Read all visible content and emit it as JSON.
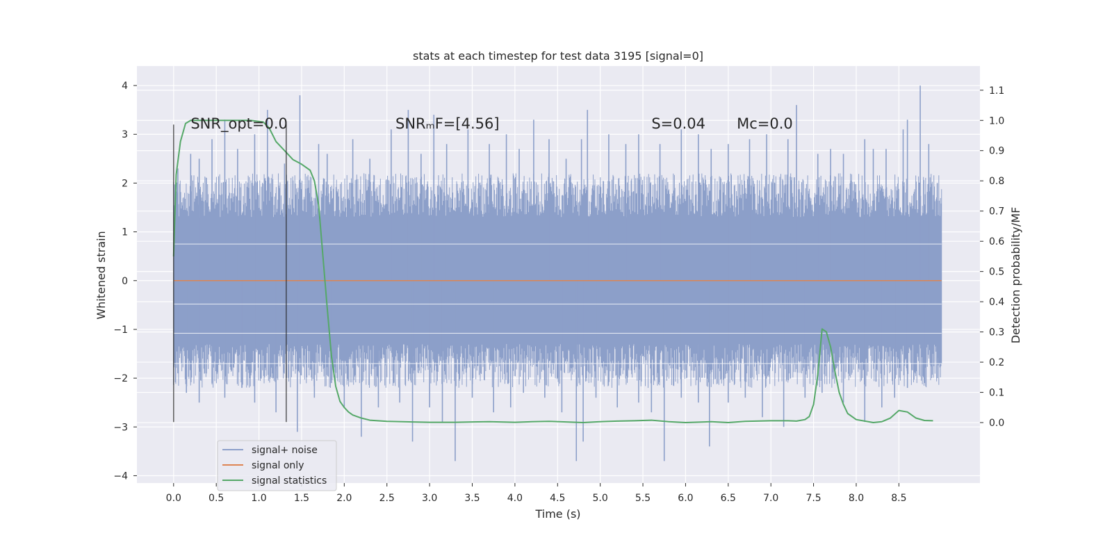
{
  "chart_data": {
    "type": "line",
    "title": "stats at each timestep for test data 3195 [signal=0]",
    "xlabel": "Time (s)",
    "ylabel": "Whitened strain",
    "y2label": "Detection probability/MF",
    "xlim": [
      -0.43,
      9.45
    ],
    "ylim": [
      -4.15,
      4.4
    ],
    "y2lim": [
      -0.2,
      1.18
    ],
    "xticks": [
      0.0,
      0.5,
      1.0,
      1.5,
      2.0,
      2.5,
      3.0,
      3.5,
      4.0,
      4.5,
      5.0,
      5.5,
      6.0,
      6.5,
      7.0,
      7.5,
      8.0,
      8.5
    ],
    "xtick_labels": [
      "0.0",
      "0.5",
      "1.0",
      "1.5",
      "2.0",
      "2.5",
      "3.0",
      "3.5",
      "4.0",
      "4.5",
      "5.0",
      "5.5",
      "6.0",
      "6.5",
      "7.0",
      "7.5",
      "8.0",
      "8.5"
    ],
    "yticks": [
      4,
      3,
      2,
      1,
      0,
      -1,
      -2,
      -3,
      -4
    ],
    "ytick_labels": [
      "4",
      "3",
      "2",
      "1",
      "0",
      "−1",
      "−2",
      "−3",
      "−4"
    ],
    "y2ticks": [
      1.1,
      1.0,
      0.9,
      0.8,
      0.7,
      0.6,
      0.5,
      0.4,
      0.3,
      0.2,
      0.1,
      0.0
    ],
    "y2tick_labels": [
      "1.1",
      "1.0",
      "0.9",
      "0.8",
      "0.7",
      "0.6",
      "0.5",
      "0.4",
      "0.3",
      "0.2",
      "0.1",
      "0.0"
    ],
    "legend_location": "lower-left",
    "grid": true,
    "series": [
      {
        "name": "signal+ noise",
        "color": "#8c9fc9",
        "axis": "left",
        "style": "noise",
        "t_range": [
          0.0,
          9.0
        ],
        "core_amplitude": 1.3,
        "spikes_up": [
          [
            0.05,
            2.3
          ],
          [
            0.2,
            2.6
          ],
          [
            0.3,
            2.5
          ],
          [
            0.45,
            2.9
          ],
          [
            0.6,
            3.3
          ],
          [
            0.75,
            2.7
          ],
          [
            0.95,
            3.0
          ],
          [
            1.1,
            3.5
          ],
          [
            1.3,
            2.4
          ],
          [
            1.48,
            3.8
          ],
          [
            1.7,
            2.8
          ],
          [
            1.8,
            2.6
          ],
          [
            2.1,
            2.9
          ],
          [
            2.3,
            2.5
          ],
          [
            2.55,
            3.1
          ],
          [
            2.75,
            3.5
          ],
          [
            2.9,
            2.6
          ],
          [
            3.05,
            3.4
          ],
          [
            3.2,
            2.8
          ],
          [
            3.45,
            3.1
          ],
          [
            3.7,
            2.8
          ],
          [
            3.9,
            3.0
          ],
          [
            4.05,
            2.7
          ],
          [
            4.22,
            3.3
          ],
          [
            4.4,
            2.9
          ],
          [
            4.6,
            2.5
          ],
          [
            4.78,
            2.9
          ],
          [
            4.85,
            3.5
          ],
          [
            5.1,
            3.0
          ],
          [
            5.3,
            2.8
          ],
          [
            5.45,
            3.0
          ],
          [
            5.7,
            2.8
          ],
          [
            5.95,
            3.1
          ],
          [
            6.15,
            3.0
          ],
          [
            6.3,
            2.7
          ],
          [
            6.5,
            2.8
          ],
          [
            6.75,
            2.9
          ],
          [
            6.95,
            3.0
          ],
          [
            7.2,
            2.9
          ],
          [
            7.3,
            3.6
          ],
          [
            7.55,
            2.6
          ],
          [
            7.7,
            2.7
          ],
          [
            7.85,
            2.6
          ],
          [
            8.1,
            2.9
          ],
          [
            8.2,
            2.7
          ],
          [
            8.35,
            2.7
          ],
          [
            8.55,
            3.1
          ],
          [
            8.6,
            3.3
          ],
          [
            8.75,
            4.0
          ],
          [
            8.85,
            2.8
          ],
          [
            8.95,
            2.0
          ]
        ],
        "spikes_down": [
          [
            0.05,
            -1.9
          ],
          [
            0.15,
            -2.3
          ],
          [
            0.3,
            -2.5
          ],
          [
            0.45,
            -2.1
          ],
          [
            0.6,
            -2.4
          ],
          [
            0.8,
            -2.2
          ],
          [
            0.95,
            -2.5
          ],
          [
            1.2,
            -2.7
          ],
          [
            1.45,
            -3.1
          ],
          [
            1.65,
            -2.4
          ],
          [
            1.85,
            -2.1
          ],
          [
            2.0,
            -2.6
          ],
          [
            2.2,
            -3.2
          ],
          [
            2.4,
            -2.6
          ],
          [
            2.65,
            -2.5
          ],
          [
            2.8,
            -3.3
          ],
          [
            3.0,
            -2.6
          ],
          [
            3.15,
            -2.9
          ],
          [
            3.3,
            -3.7
          ],
          [
            3.5,
            -2.4
          ],
          [
            3.75,
            -2.7
          ],
          [
            3.95,
            -2.6
          ],
          [
            4.1,
            -2.3
          ],
          [
            4.35,
            -2.4
          ],
          [
            4.55,
            -2.7
          ],
          [
            4.72,
            -3.7
          ],
          [
            4.8,
            -3.3
          ],
          [
            4.95,
            -2.4
          ],
          [
            5.2,
            -2.6
          ],
          [
            5.45,
            -2.5
          ],
          [
            5.6,
            -2.7
          ],
          [
            5.75,
            -3.7
          ],
          [
            5.95,
            -2.4
          ],
          [
            6.15,
            -2.5
          ],
          [
            6.28,
            -3.4
          ],
          [
            6.5,
            -2.5
          ],
          [
            6.7,
            -2.4
          ],
          [
            6.9,
            -2.8
          ],
          [
            7.15,
            -3.0
          ],
          [
            7.4,
            -2.4
          ],
          [
            7.6,
            -2.3
          ],
          [
            7.85,
            -2.5
          ],
          [
            8.1,
            -2.9
          ],
          [
            8.3,
            -2.6
          ],
          [
            8.45,
            -2.4
          ],
          [
            8.6,
            -2.2
          ],
          [
            8.8,
            -2.1
          ],
          [
            8.95,
            -2.0
          ]
        ]
      },
      {
        "name": "signal only",
        "color": "#dd8452",
        "axis": "left",
        "style": "line",
        "x": [
          0.0,
          9.0
        ],
        "y": [
          0.0,
          0.0
        ]
      },
      {
        "name": "signal statistics",
        "color": "#55a868",
        "axis": "right",
        "style": "line",
        "x": [
          0.0,
          0.03,
          0.08,
          0.14,
          0.2,
          0.3,
          0.5,
          0.7,
          0.9,
          1.05,
          1.12,
          1.2,
          1.3,
          1.4,
          1.5,
          1.6,
          1.65,
          1.7,
          1.75,
          1.8,
          1.85,
          1.9,
          1.95,
          2.0,
          2.05,
          2.1,
          2.2,
          2.3,
          2.5,
          2.8,
          3.0,
          3.3,
          3.5,
          3.7,
          4.0,
          4.2,
          4.4,
          4.6,
          4.8,
          5.0,
          5.2,
          5.4,
          5.6,
          5.8,
          6.0,
          6.3,
          6.5,
          6.7,
          7.0,
          7.2,
          7.3,
          7.4,
          7.45,
          7.5,
          7.55,
          7.6,
          7.65,
          7.7,
          7.75,
          7.8,
          7.85,
          7.9,
          8.0,
          8.1,
          8.2,
          8.3,
          8.4,
          8.5,
          8.6,
          8.7,
          8.8,
          8.9
        ],
        "y": [
          0.55,
          0.82,
          0.93,
          0.99,
          1.0,
          1.0,
          1.0,
          1.0,
          1.0,
          0.995,
          0.975,
          0.93,
          0.9,
          0.87,
          0.855,
          0.835,
          0.8,
          0.72,
          0.55,
          0.38,
          0.22,
          0.12,
          0.07,
          0.05,
          0.035,
          0.025,
          0.015,
          0.008,
          0.004,
          0.002,
          0.001,
          0.001,
          0.002,
          0.003,
          0.001,
          0.003,
          0.004,
          0.002,
          0.0,
          0.003,
          0.005,
          0.006,
          0.008,
          0.003,
          0.0,
          0.003,
          0.0,
          0.004,
          0.006,
          0.006,
          0.005,
          0.01,
          0.02,
          0.06,
          0.16,
          0.31,
          0.3,
          0.25,
          0.17,
          0.1,
          0.06,
          0.03,
          0.01,
          0.005,
          0.0,
          0.003,
          0.015,
          0.04,
          0.035,
          0.015,
          0.007,
          0.006
        ]
      }
    ],
    "markers": [
      {
        "name": "marker-start",
        "x": 0.0,
        "y_range": [
          -2.9,
          3.2
        ],
        "color": "#262626"
      },
      {
        "name": "marker-end",
        "x": 1.32,
        "y_range": [
          -2.9,
          3.2
        ],
        "color": "#262626"
      }
    ],
    "annotations": [
      {
        "name": "snr-opt",
        "text": "SNR_opt=0.0",
        "x": 0.2,
        "y": 3.12
      },
      {
        "name": "snr-mf",
        "text": "SNRₘF=[4.56]",
        "x": 2.6,
        "y": 3.12
      },
      {
        "name": "s-value",
        "text": "S=0.04",
        "x": 5.6,
        "y": 3.12
      },
      {
        "name": "mc-value",
        "text": "Mᴄ=0.0",
        "x": 6.6,
        "y": 3.12
      }
    ]
  }
}
